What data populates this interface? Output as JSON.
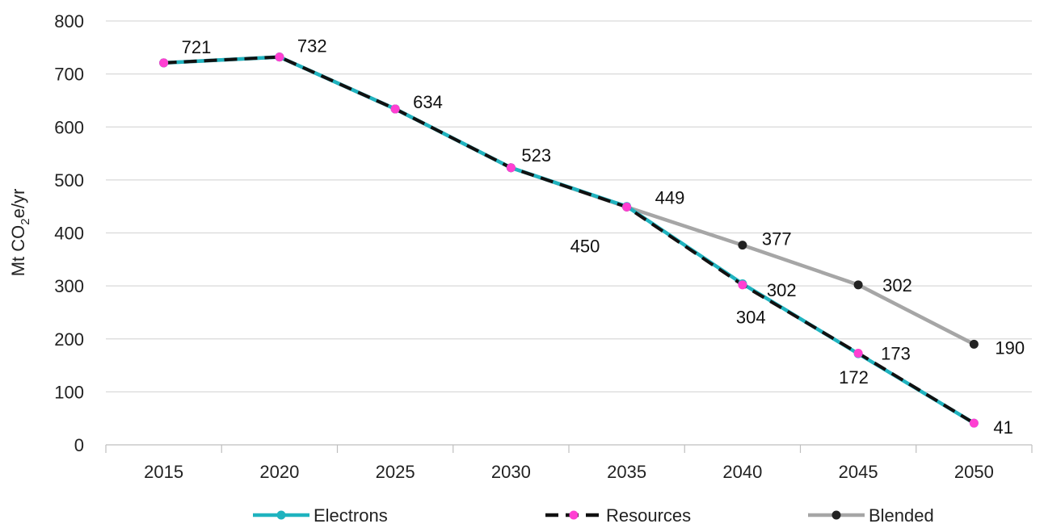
{
  "chart_data": {
    "type": "line",
    "title": "",
    "xlabel": "",
    "ylabel": "Mt CO2e/yr",
    "ylabel_parts": {
      "before": "Mt CO",
      "sub": "2",
      "after": "e/yr"
    },
    "ylim": [
      0,
      800
    ],
    "yticks": [
      "0",
      "100",
      "200",
      "300",
      "400",
      "500",
      "600",
      "700",
      "800"
    ],
    "categories": [
      "2015",
      "2020",
      "2025",
      "2030",
      "2035",
      "2040",
      "2045",
      "2050"
    ],
    "grid": true,
    "legend_position": "bottom",
    "series": [
      {
        "name": "Electrons",
        "color": "#1fb3bf",
        "marker_color": "#1fb3bf",
        "dashed": false,
        "values": [
          721,
          732,
          634,
          523,
          450,
          304,
          172,
          41
        ],
        "labels": [
          "",
          "",
          "",
          "",
          "450",
          "304",
          "172",
          ""
        ]
      },
      {
        "name": "Resources",
        "color": "#111111",
        "marker_color": "#ff3fd2",
        "dashed": true,
        "values": [
          721,
          732,
          634,
          523,
          449,
          302,
          173,
          41
        ],
        "labels": [
          "",
          "",
          "",
          "",
          "",
          "302",
          "173",
          "41"
        ]
      },
      {
        "name": "Blended",
        "color": "#a6a6a6",
        "marker_color": "#222222",
        "dashed": false,
        "values": [
          721,
          732,
          634,
          523,
          449,
          377,
          302,
          190
        ],
        "labels": [
          "721",
          "732",
          "634",
          "523",
          "449",
          "377",
          "302",
          "190"
        ]
      }
    ]
  }
}
